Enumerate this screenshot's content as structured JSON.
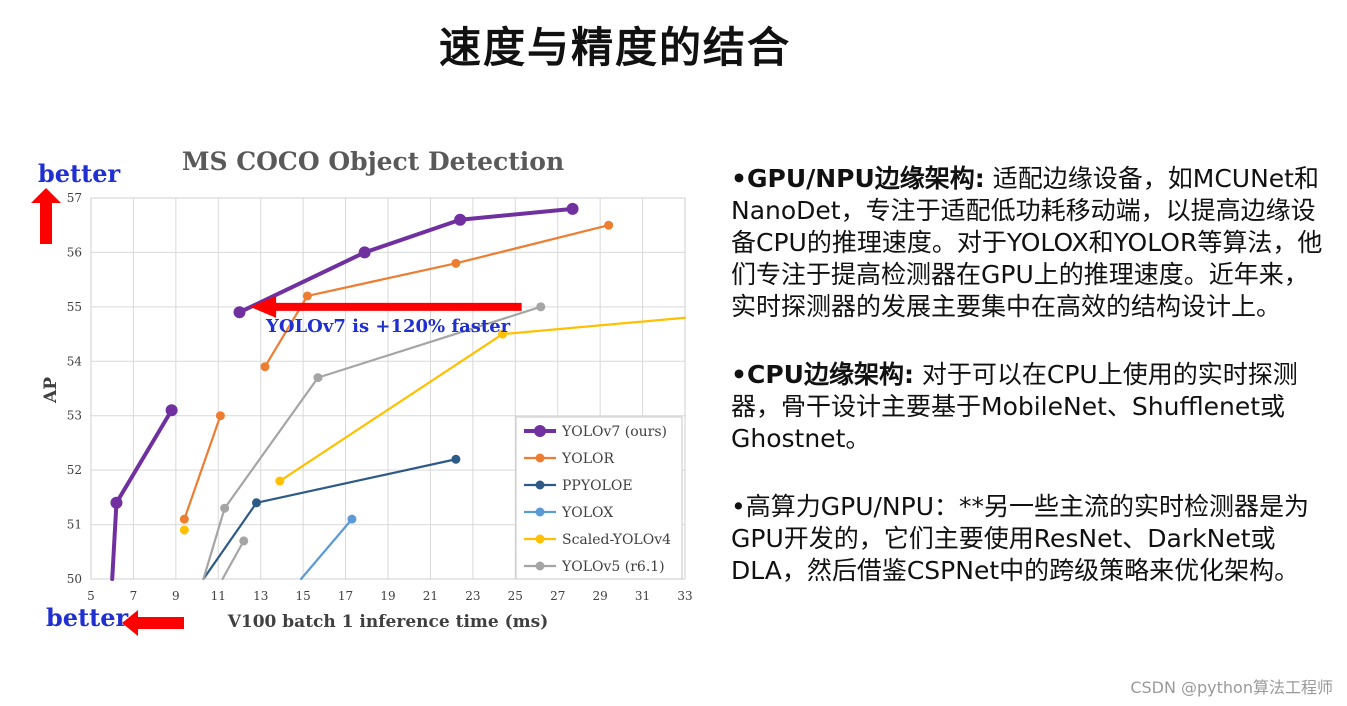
{
  "slide": {
    "title": "速度与精度的结合",
    "watermark": "CSDN @python算法工程师"
  },
  "annotations": {
    "better_vertical": "better",
    "better_horizontal": "better",
    "arrow_label": "YOLOv7 is +120% faster"
  },
  "bullets": [
    {
      "head": "•GPU/NPU边缘架构:",
      "text": " 适配边缘设备，如MCUNet和NanoDet，专注于适配低功耗移动端，以提高边缘设备CPU的推理速度。对于YOLOX和YOLOR等算法，他们专注于提高检测器在GPU上的推理速度。近年来，实时探测器的发展主要集中在高效的结构设计上。"
    },
    {
      "head": "•CPU边缘架构:",
      "text": " 对于可以在CPU上使用的实时探测器，骨干设计主要基于MobileNet、Shufflenet或Ghostnet。"
    },
    {
      "head": "",
      "text": "•高算力GPU/NPU：**另一些主流的实时检测器是为GPU开发的，它们主要使用ResNet、DarkNet或DLA，然后借鉴CSPNet中的跨级策略来优化架构。"
    }
  ],
  "chart_data": {
    "type": "line",
    "title": "MS COCO Object Detection",
    "xlabel": "V100 batch 1 inference time (ms)",
    "ylabel": "AP",
    "xlim": [
      5,
      33
    ],
    "ylim": [
      50,
      57
    ],
    "xticks": [
      "5",
      "7",
      "9",
      "11",
      "13",
      "15",
      "17",
      "19",
      "21",
      "23",
      "25",
      "27",
      "29",
      "31",
      "33"
    ],
    "yticks": [
      "50",
      "51",
      "52",
      "53",
      "54",
      "55",
      "56",
      "57"
    ],
    "grid": true,
    "legend_position": "bottom-right",
    "series": [
      {
        "name": "YOLOv7 (ours)",
        "color": "#7030a0",
        "style": "bold",
        "points": [
          [
            6.0,
            50.0
          ],
          [
            6.2,
            51.4
          ],
          [
            8.8,
            53.1
          ]
        ]
      },
      {
        "name": "",
        "color": "#7030a0",
        "style": "bold",
        "points": [
          [
            12.0,
            54.9
          ],
          [
            17.9,
            56.0
          ],
          [
            22.4,
            56.6
          ],
          [
            27.7,
            56.8
          ]
        ]
      },
      {
        "name": "YOLOR",
        "color": "#ed7d31",
        "points": [
          [
            9.4,
            51.1
          ],
          [
            11.1,
            53.0
          ]
        ]
      },
      {
        "name": "",
        "color": "#ed7d31",
        "points": [
          [
            13.2,
            53.9
          ],
          [
            15.2,
            55.2
          ],
          [
            22.2,
            55.8
          ],
          [
            29.4,
            56.5
          ]
        ]
      },
      {
        "name": "PPYOLOE",
        "color": "#2e5a87",
        "points": [
          [
            10.3,
            50.0
          ],
          [
            12.8,
            51.4
          ],
          [
            22.2,
            52.2
          ]
        ]
      },
      {
        "name": "YOLOX",
        "color": "#5b9bd5",
        "points": [
          [
            14.9,
            50.0
          ],
          [
            17.3,
            51.1
          ]
        ]
      },
      {
        "name": "Scaled-YOLOv4",
        "color": "#ffc000",
        "points": [
          [
            9.4,
            50.9
          ]
        ]
      },
      {
        "name": "",
        "color": "#ffc000",
        "points": [
          [
            13.9,
            51.8
          ],
          [
            24.4,
            54.5
          ],
          [
            33.0,
            54.8
          ]
        ]
      },
      {
        "name": "YOLOv5 (r6.1)",
        "color": "#a5a5a5",
        "points": [
          [
            10.3,
            50.0
          ],
          [
            11.3,
            51.3
          ],
          [
            15.7,
            53.7
          ],
          [
            26.2,
            55.0
          ]
        ]
      },
      {
        "name": "",
        "color": "#a5a5a5",
        "points": [
          [
            11.2,
            50.0
          ],
          [
            12.2,
            50.7
          ]
        ]
      }
    ],
    "annotation_arrow": {
      "from": [
        25.3,
        55.0
      ],
      "to": [
        12.5,
        55.0
      ],
      "color": "#ff0000"
    }
  }
}
